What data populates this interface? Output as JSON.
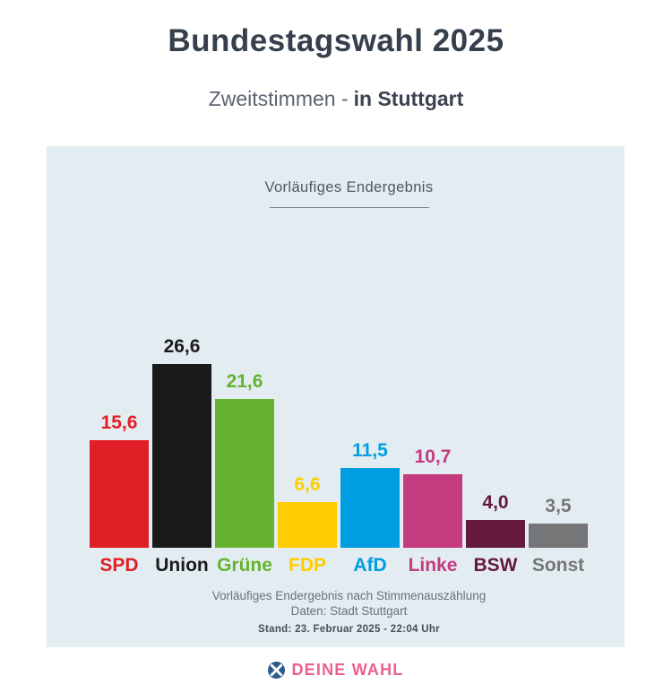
{
  "header": {
    "title": "Bundestagswahl 2025",
    "subtitle_left": "Zweitstimmen -",
    "subtitle_right": "in Stuttgart"
  },
  "panel": {
    "headline": "Vorläufiges Endergebnis",
    "background_color": "#e3edf1",
    "footnote_line1": "Vorläufiges Endergebnis nach Stimmenauszählung",
    "footnote_line2": "Daten: Stadt Stuttgart",
    "stand_line": "Stand: 23. Februar 2025  - 22:04 Uhr"
  },
  "chart_data": {
    "type": "bar",
    "title": "Bundestagswahl 2025 – Zweitstimmen in Stuttgart",
    "subtitle": "Vorläufiges Endergebnis",
    "categories": [
      "SPD",
      "Union",
      "Grüne",
      "FDP",
      "AfD",
      "Linke",
      "BSW",
      "Sonst"
    ],
    "values": [
      15.6,
      26.6,
      21.6,
      6.6,
      11.5,
      10.7,
      4.0,
      3.5
    ],
    "value_labels": [
      "15,6",
      "26,6",
      "21,6",
      "6,6",
      "11,5",
      "10,7",
      "4,0",
      "3,5"
    ],
    "colors": [
      "#e01e25",
      "#1a1a1a",
      "#65b32e",
      "#ffcc00",
      "#009de0",
      "#c43b80",
      "#64193f",
      "#757678"
    ],
    "unit": "percent",
    "ylim": [
      0,
      30
    ],
    "grid": false,
    "legend": "none",
    "value_label_position": "above-bar",
    "category_label_position": "below-bar"
  },
  "logo": {
    "text": "DEINE WAHL",
    "icon": "ballot-x-icon",
    "text_color": "#ec5f93",
    "icon_color": "#2d5c8a"
  }
}
